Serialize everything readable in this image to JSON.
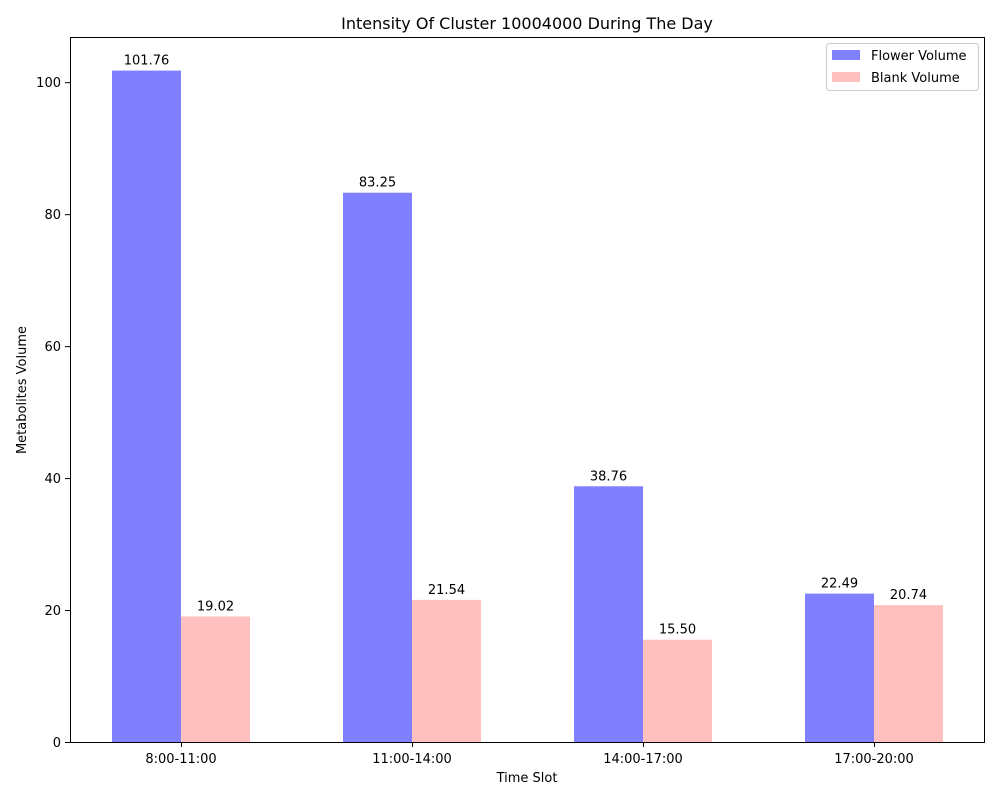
{
  "chart_data": {
    "type": "bar",
    "title": "Intensity Of Cluster 10004000 During The Day",
    "xlabel": "Time Slot",
    "ylabel": "Metabolites Volume",
    "categories": [
      "8:00-11:00",
      "11:00-14:00",
      "14:00-17:00",
      "17:00-20:00"
    ],
    "series": [
      {
        "name": "Flower Volume",
        "color": "#8080ff",
        "values": [
          101.76,
          83.25,
          38.76,
          22.49
        ],
        "labels": [
          "101.76",
          "83.25",
          "38.76",
          "22.49"
        ]
      },
      {
        "name": "Blank Volume",
        "color": "#ffc0c0",
        "values": [
          19.02,
          21.54,
          15.5,
          20.74
        ],
        "labels": [
          "19.02",
          "21.54",
          "15.50",
          "20.74"
        ]
      }
    ],
    "ylim": [
      0,
      106.85
    ],
    "yticks": [
      0,
      20,
      40,
      60,
      80,
      100
    ],
    "ytick_labels": [
      "0",
      "20",
      "40",
      "60",
      "80",
      "100"
    ],
    "grid": false,
    "legend_position": "top-right"
  }
}
